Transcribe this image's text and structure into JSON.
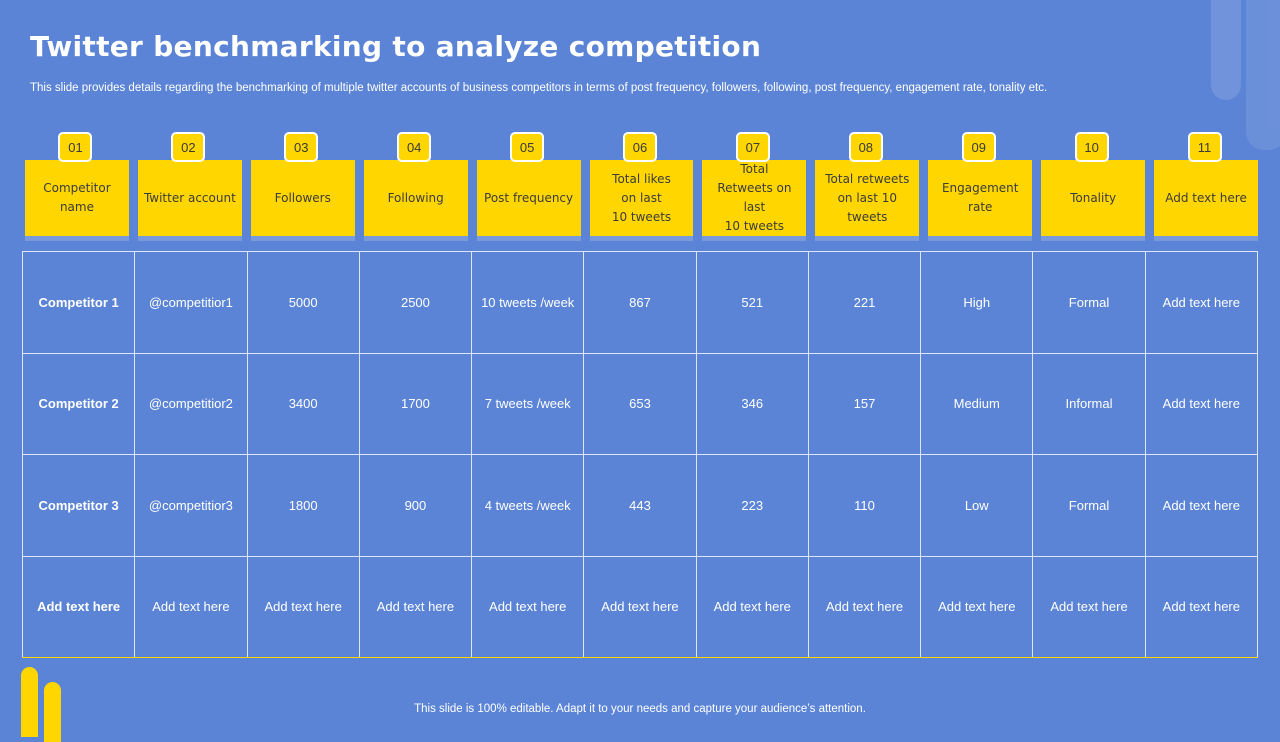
{
  "slide": {
    "title": "Twitter benchmarking to analyze competition",
    "subtitle": "This slide provides details regarding the benchmarking of multiple twitter accounts of business competitors in terms of post frequency, followers, following, post frequency, engagement rate, tonality etc.",
    "footer": "This slide is 100% editable. Adapt it to your needs and capture your audience’s attention."
  },
  "columns": [
    {
      "num": "01",
      "label": "Competitor\nname"
    },
    {
      "num": "02",
      "label": "Twitter account"
    },
    {
      "num": "03",
      "label": "Followers"
    },
    {
      "num": "04",
      "label": "Following"
    },
    {
      "num": "05",
      "label": "Post frequency"
    },
    {
      "num": "06",
      "label": "Total likes\non last\n10 tweets"
    },
    {
      "num": "07",
      "label": "Total\nRetweets on last\n10 tweets"
    },
    {
      "num": "08",
      "label": "Total retweets\non last 10 tweets"
    },
    {
      "num": "09",
      "label": "Engagement  rate"
    },
    {
      "num": "10",
      "label": "Tonality"
    },
    {
      "num": "11",
      "label": "Add text here"
    }
  ],
  "rows": [
    [
      "Competitor 1",
      "@competitior1",
      "5000",
      "2500",
      "10 tweets /week",
      "867",
      "521",
      "221",
      "High",
      "Formal",
      "Add text here"
    ],
    [
      "Competitor 2",
      "@competitior2",
      "3400",
      "1700",
      "7 tweets /week",
      "653",
      "346",
      "157",
      "Medium",
      "Informal",
      "Add text here"
    ],
    [
      "Competitor 3",
      "@competitior3",
      "1800",
      "900",
      "4 tweets /week",
      "443",
      "223",
      "110",
      "Low",
      "Formal",
      "Add text here"
    ],
    [
      "Add text here",
      "Add text here",
      "Add text here",
      "Add text here",
      "Add text here",
      "Add text here",
      "Add text here",
      "Add text here",
      "Add text here",
      "Add text here",
      "Add text here"
    ]
  ],
  "colors": {
    "background": "#5b84d6",
    "accent": "#ffd600",
    "grid_line": "#dde6f7"
  }
}
